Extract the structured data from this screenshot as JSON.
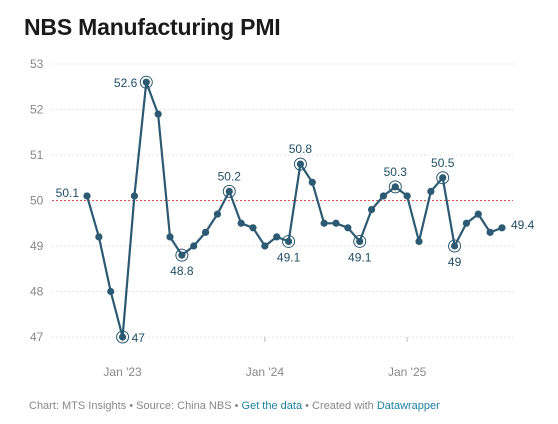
{
  "title": "NBS Manufacturing PMI",
  "footer": {
    "source_text": "Chart: MTS Insights • Source: China NBS • ",
    "get_data": "Get the data",
    "created_text": " • Created with ",
    "datawrapper": "Datawrapper"
  },
  "colors": {
    "line": "#2b5a72",
    "reference": "#e0534a",
    "grid": "#dddddd"
  },
  "chart_data": {
    "type": "line",
    "title": "NBS Manufacturing PMI",
    "xlabel": "",
    "ylabel": "",
    "ylim": [
      47,
      53
    ],
    "y_ticks": [
      47,
      48,
      49,
      50,
      51,
      52,
      53
    ],
    "x_ticks": [
      {
        "label": "Jan '23",
        "date": "2023-01"
      },
      {
        "label": "Jan '24",
        "date": "2024-01"
      },
      {
        "label": "Jan '25",
        "date": "2025-01"
      }
    ],
    "reference_line": 50,
    "grid": true,
    "series": [
      {
        "x": [
          "2022-10",
          "2022-11",
          "2022-12",
          "2023-01",
          "2023-02",
          "2023-03",
          "2023-04",
          "2023-05",
          "2023-06",
          "2023-07",
          "2023-08",
          "2023-09",
          "2023-10",
          "2023-11",
          "2023-12",
          "2024-01",
          "2024-02",
          "2024-03",
          "2024-04",
          "2024-05",
          "2024-06",
          "2024-07",
          "2024-08",
          "2024-09",
          "2024-10",
          "2024-11",
          "2024-12",
          "2025-01",
          "2025-02",
          "2025-03",
          "2025-04",
          "2025-05",
          "2025-06",
          "2025-07",
          "2025-08"
        ],
        "values": [
          50.1,
          49.2,
          48.0,
          47.0,
          50.1,
          52.6,
          51.9,
          49.2,
          48.8,
          49.0,
          49.3,
          49.7,
          50.2,
          49.5,
          49.4,
          49.0,
          49.2,
          49.1,
          50.8,
          50.4,
          49.5,
          49.5,
          49.4,
          49.1,
          49.8,
          50.1,
          50.3,
          50.1,
          49.1,
          50.2,
          50.5,
          49.0,
          49.5,
          49.7,
          49.3
        ]
      }
    ],
    "last_point": {
      "x": "2025-09",
      "value": 49.4
    },
    "annotations": [
      {
        "x": "2022-10",
        "value": 50.1,
        "label": "50.1",
        "ring": false
      },
      {
        "x": "2023-01",
        "value": 47.0,
        "label": "47",
        "ring": true
      },
      {
        "x": "2023-03",
        "value": 52.6,
        "label": "52.6",
        "ring": true
      },
      {
        "x": "2023-06",
        "value": 48.8,
        "label": "48.8",
        "ring": true
      },
      {
        "x": "2023-10",
        "value": 50.2,
        "label": "50.2",
        "ring": true
      },
      {
        "x": "2024-03",
        "value": 49.1,
        "label": "49.1",
        "ring": true
      },
      {
        "x": "2024-04",
        "value": 50.8,
        "label": "50.8",
        "ring": true
      },
      {
        "x": "2024-09",
        "value": 49.1,
        "label": "49.1",
        "ring": true
      },
      {
        "x": "2024-12",
        "value": 50.3,
        "label": "50.3",
        "ring": true
      },
      {
        "x": "2025-04",
        "value": 50.5,
        "label": "50.5",
        "ring": true
      },
      {
        "x": "2025-05",
        "value": 49.0,
        "label": "49",
        "ring": true
      },
      {
        "x": "2025-09",
        "value": 49.4,
        "label": "49.4",
        "ring": false
      }
    ]
  }
}
